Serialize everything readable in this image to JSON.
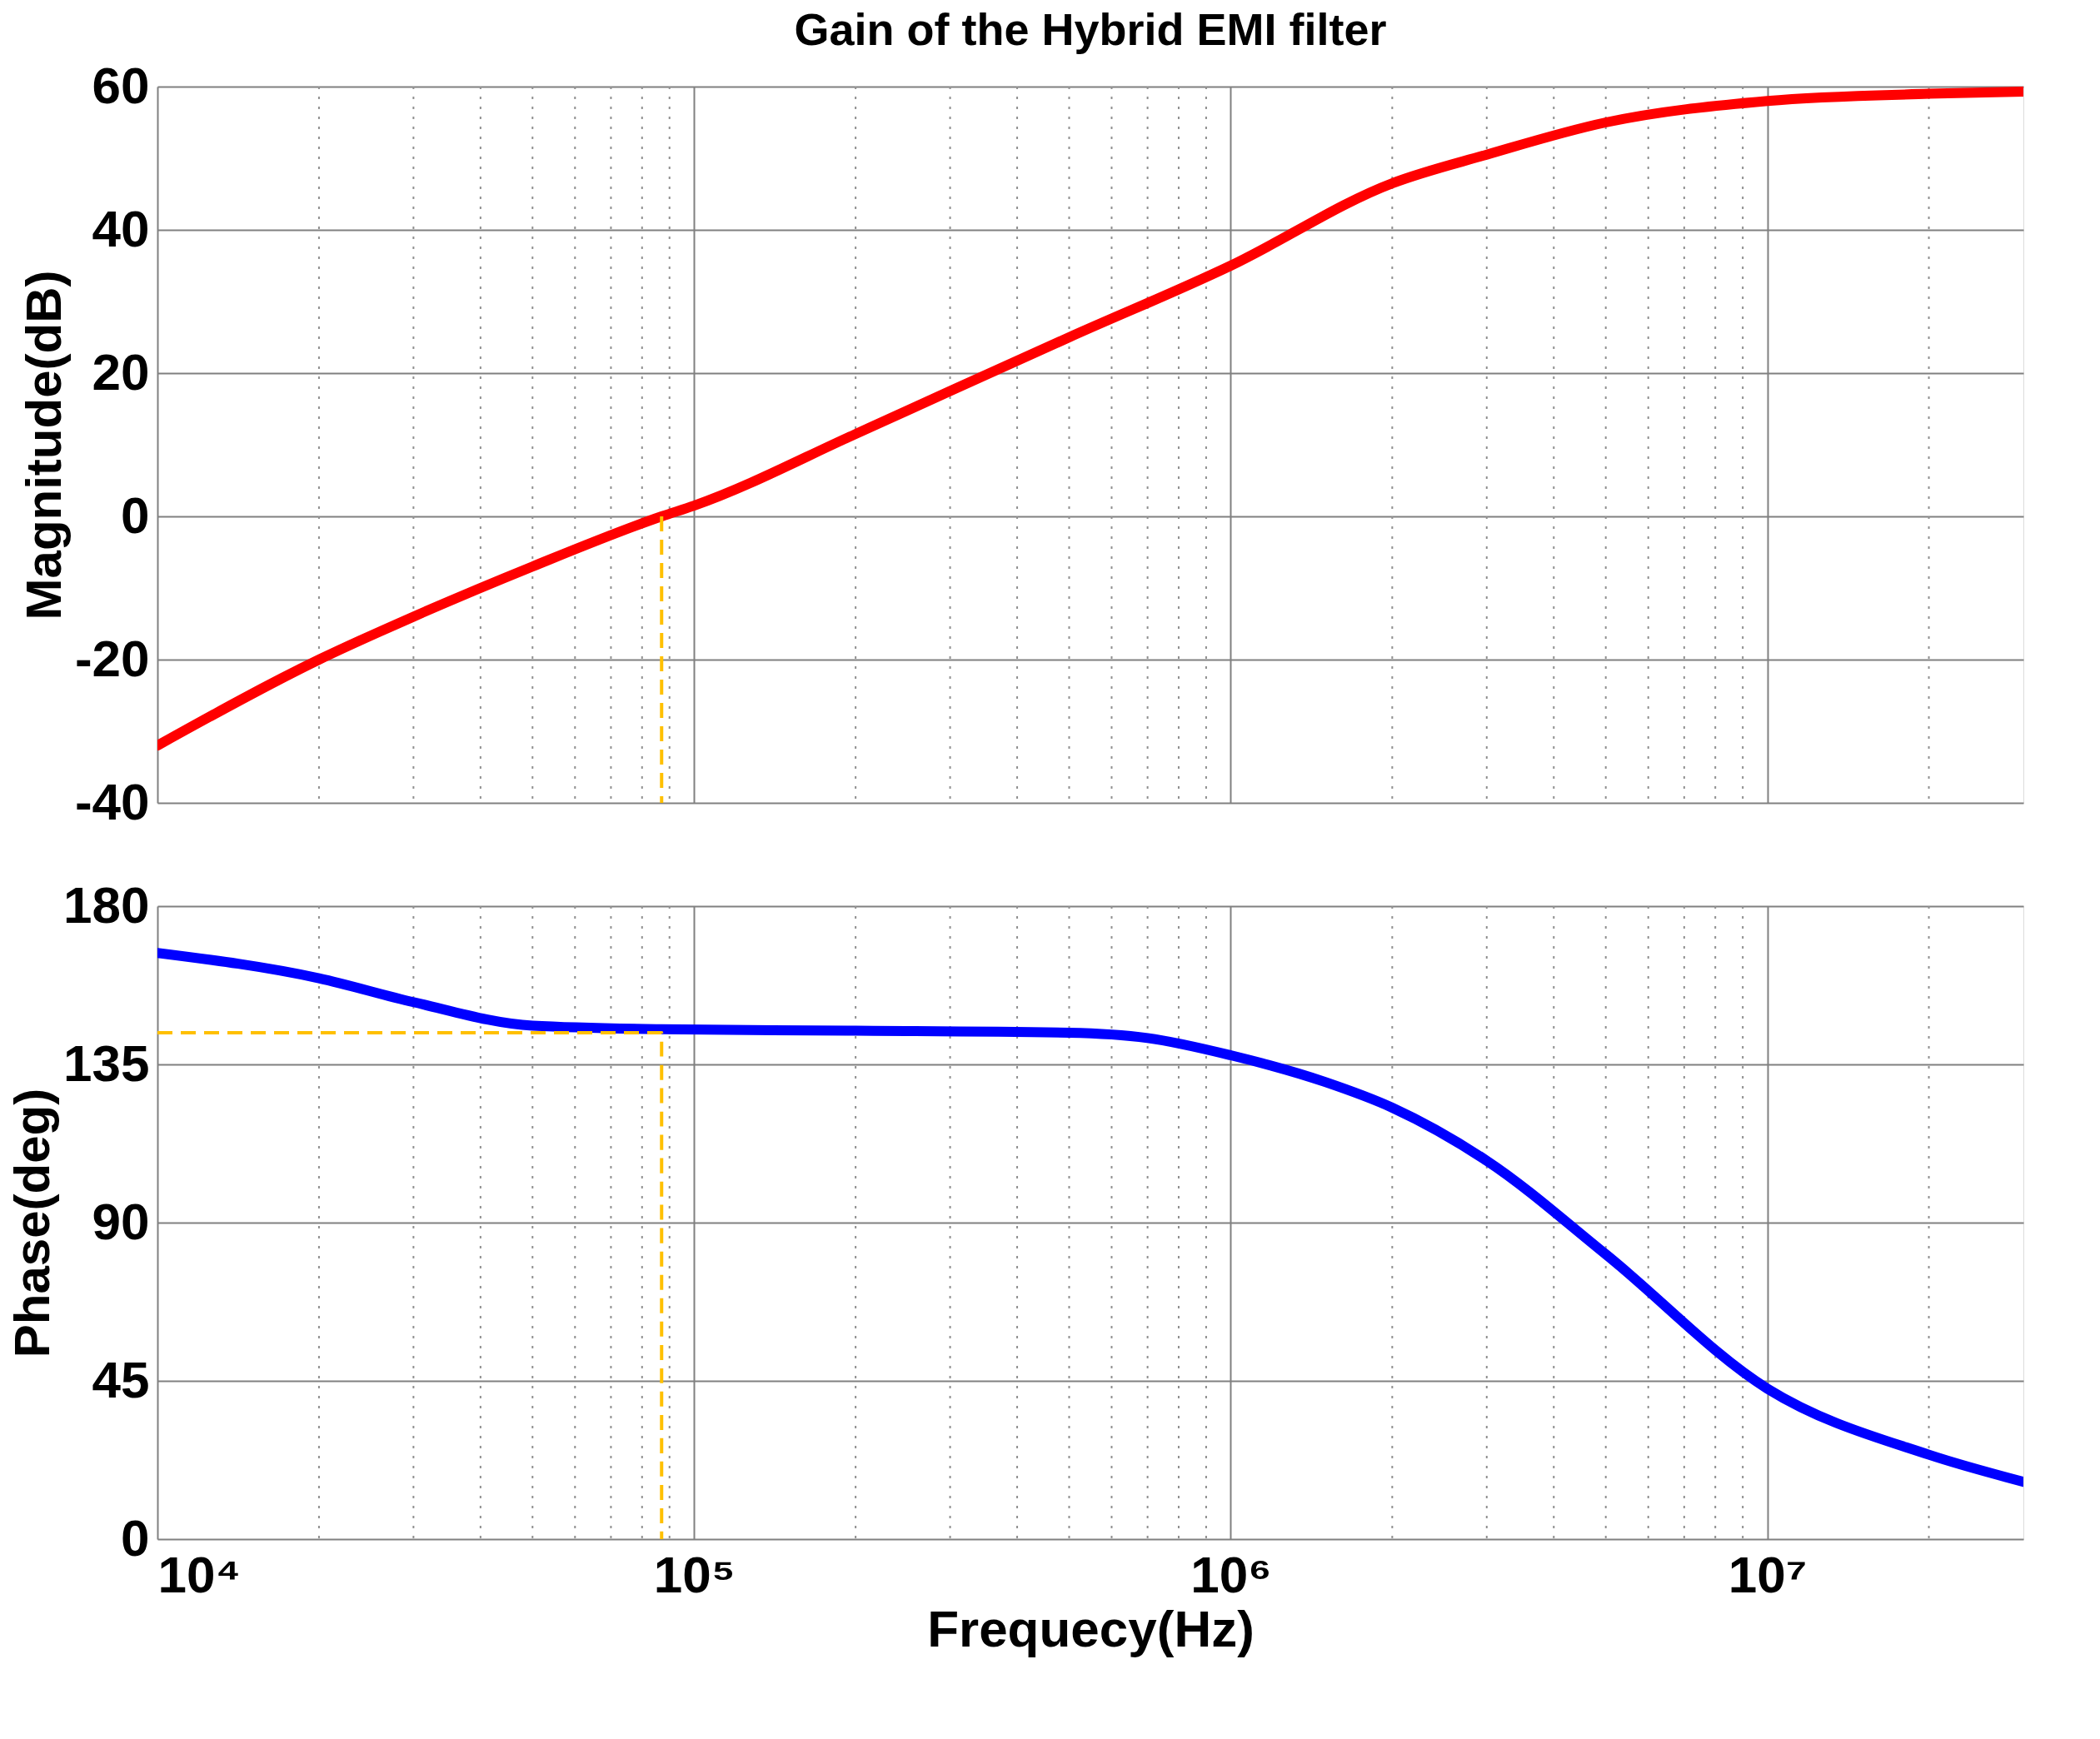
{
  "chart_data": [
    {
      "type": "line",
      "title": "Gain of the Hybrid EMI filter",
      "ylabel": "Magnitude(dB)",
      "xlim": [
        10000,
        30000000
      ],
      "xticks": [
        {
          "value": 10000,
          "label": null
        },
        {
          "value": 100000,
          "label": null
        },
        {
          "value": 1000000,
          "label": null
        },
        {
          "value": 10000000,
          "label": null
        }
      ],
      "ylim": [
        -40,
        60
      ],
      "yticks": [
        -40,
        -20,
        0,
        20,
        40,
        60
      ],
      "log": "x",
      "grid": true,
      "tick_labels": "y",
      "series": [
        {
          "color": "#ff0000",
          "line_style": "solid",
          "x": [
            10000,
            20000,
            30000,
            50000,
            87000,
            100000,
            200000,
            300000,
            500000,
            1000000,
            2000000,
            3000000,
            5000000,
            10000000,
            20000000,
            30000000
          ],
          "values": [
            -32,
            -20,
            -14,
            -7,
            0,
            1.5,
            11.5,
            17.5,
            25,
            35,
            46.5,
            50.5,
            55,
            58,
            59,
            59.3
          ]
        },
        {
          "color": "#ffc000",
          "line_style": "dashed",
          "x": [
            87000,
            87000
          ],
          "values": [
            0,
            -40
          ]
        }
      ]
    },
    {
      "type": "line",
      "xlabel": "Frequecy(Hz)",
      "ylabel": "Phase(deg)",
      "xlim": [
        10000,
        30000000
      ],
      "xticks": [
        {
          "value": 10000,
          "label": "10⁴"
        },
        {
          "value": 100000,
          "label": "10⁵"
        },
        {
          "value": 1000000,
          "label": "10⁶"
        },
        {
          "value": 10000000,
          "label": "10⁷"
        }
      ],
      "ylim": [
        0,
        180
      ],
      "yticks": [
        0,
        45,
        90,
        135,
        180
      ],
      "log": "x",
      "grid": true,
      "series": [
        {
          "color": "#0000ff",
          "line_style": "solid",
          "x": [
            10000,
            20000,
            30000,
            50000,
            87000,
            200000,
            500000,
            700000,
            1000000,
            1500000,
            2000000,
            3000000,
            5000000,
            10000000,
            20000000,
            30000000
          ],
          "values": [
            166.7,
            159.5,
            152.7,
            146,
            145,
            144.6,
            144,
            142.5,
            137.6,
            130,
            122.7,
            107.6,
            81,
            42.8,
            24,
            16.3
          ]
        },
        {
          "color": "#ffc000",
          "line_style": "dashed",
          "x": [
            10000,
            87000,
            87000
          ],
          "values": [
            144,
            144,
            0
          ]
        }
      ]
    }
  ]
}
